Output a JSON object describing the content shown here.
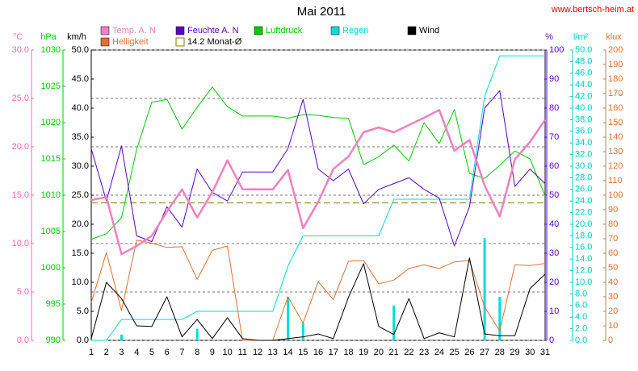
{
  "chart_data": {
    "type": "line",
    "title": "Mai 2011",
    "source": "www.bertsch-heim.at",
    "x": [
      1,
      2,
      3,
      4,
      5,
      6,
      7,
      8,
      9,
      10,
      11,
      12,
      13,
      14,
      15,
      16,
      17,
      18,
      19,
      20,
      21,
      22,
      23,
      24,
      25,
      26,
      27,
      28,
      29,
      30,
      31
    ],
    "xlim": [
      1,
      31
    ],
    "grid": true,
    "axes": {
      "temp": {
        "label": "°C",
        "color": "#ff66bb",
        "side": "left",
        "lim": [
          0,
          30
        ],
        "ticks": [
          {
            "value": 0,
            "label": "0.0"
          },
          {
            "value": 5,
            "label": "5.0"
          },
          {
            "value": 10,
            "label": "10.0"
          },
          {
            "value": 15,
            "label": "15.0"
          },
          {
            "value": 20,
            "label": "20.0"
          },
          {
            "value": 25,
            "label": "25.0"
          },
          {
            "value": 30,
            "label": "30.0"
          }
        ]
      },
      "press": {
        "label": "hPa",
        "color": "#00cc00",
        "side": "left",
        "lim": [
          990,
          1030
        ],
        "ticks": [
          990,
          995,
          1000,
          1005,
          1010,
          1015,
          1020,
          1025,
          1030
        ]
      },
      "wind": {
        "label": "km/h",
        "color": "#000000",
        "side": "left",
        "lim": [
          0,
          50
        ],
        "ticks": [
          {
            "value": 0,
            "label": "0.0"
          },
          {
            "value": 5,
            "label": "5.0"
          },
          {
            "value": 10,
            "label": "10.0"
          },
          {
            "value": 15,
            "label": "15.0"
          },
          {
            "value": 20,
            "label": "20.0"
          },
          {
            "value": 25,
            "label": "25.0"
          },
          {
            "value": 30,
            "label": "30.0"
          },
          {
            "value": 35,
            "label": "35.0"
          },
          {
            "value": 40,
            "label": "40.0"
          },
          {
            "value": 45,
            "label": "45.0"
          },
          {
            "value": 50,
            "label": "50.0"
          }
        ]
      },
      "hum": {
        "label": "%",
        "color": "#5a00c8",
        "side": "right",
        "lim": [
          0,
          100
        ],
        "ticks": [
          0,
          10,
          20,
          30,
          40,
          50,
          60,
          70,
          80,
          90,
          100
        ]
      },
      "rain": {
        "label": "l/m²",
        "color": "#00cccc",
        "side": "right",
        "lim": [
          0,
          50
        ],
        "ticks": [
          {
            "value": 0,
            "label": "0.0"
          },
          {
            "value": 2,
            "label": "2.0"
          },
          {
            "value": 4,
            "label": "4.0"
          },
          {
            "value": 6,
            "label": "6.0"
          },
          {
            "value": 8,
            "label": "8.0"
          },
          {
            "value": 10,
            "label": "10.0"
          },
          {
            "value": 12,
            "label": "12.0"
          },
          {
            "value": 14,
            "label": "14.0"
          },
          {
            "value": 16,
            "label": "16.0"
          },
          {
            "value": 18,
            "label": "18.0"
          },
          {
            "value": 20,
            "label": "20.0"
          },
          {
            "value": 22,
            "label": "22.0"
          },
          {
            "value": 24,
            "label": "24.0"
          },
          {
            "value": 26,
            "label": "26.0"
          },
          {
            "value": 28,
            "label": "28.0"
          },
          {
            "value": 30,
            "label": "30.0"
          },
          {
            "value": 32,
            "label": "32.0"
          },
          {
            "value": 34,
            "label": "34.0"
          },
          {
            "value": 36,
            "label": "36.0"
          },
          {
            "value": 38,
            "label": "38.0"
          },
          {
            "value": 40,
            "label": "40.0"
          },
          {
            "value": 42,
            "label": "42.0"
          },
          {
            "value": 44,
            "label": "44.0"
          },
          {
            "value": 46,
            "label": "46.0"
          },
          {
            "value": 48,
            "label": "48.0"
          },
          {
            "value": 50,
            "label": "50.0"
          }
        ]
      },
      "lux": {
        "label": "klux",
        "color": "#e07030",
        "side": "right",
        "lim": [
          0,
          200
        ],
        "ticks": [
          0,
          10,
          20,
          30,
          40,
          50,
          60,
          70,
          80,
          90,
          100,
          110,
          120,
          130,
          140,
          150,
          160,
          170,
          180,
          190,
          200
        ]
      }
    },
    "series": [
      {
        "name": "Temp. A. N",
        "color": "#f080c0",
        "axis": "temp",
        "width": 2.5,
        "values": [
          14.5,
          14.8,
          8.9,
          9.75,
          10.8,
          13.3,
          15.6,
          12.7,
          15.3,
          18.6,
          15.6,
          15.6,
          15.6,
          17.6,
          11.6,
          14.3,
          17.7,
          19,
          21.5,
          22,
          21.5,
          22.25,
          23,
          23.8,
          19.6,
          20.7,
          16,
          12.8,
          18.7,
          20.5,
          22.8
        ]
      },
      {
        "name": "Feuchte A. N",
        "color": "#5a00c8",
        "axis": "hum",
        "width": 1,
        "values": [
          66,
          48,
          67,
          36,
          34,
          46,
          39,
          59,
          51,
          48,
          58,
          58,
          58,
          66,
          83,
          59,
          55,
          59,
          47,
          52,
          54,
          56,
          52,
          49,
          32.5,
          46,
          80,
          86,
          53,
          59,
          54
        ]
      },
      {
        "name": "Luftdruck",
        "color": "#00cc00",
        "axis": "press",
        "width": 1,
        "values": [
          1003.9,
          1004.7,
          1006.9,
          1016.3,
          1022.8,
          1023.2,
          1019.1,
          1022.1,
          1024.9,
          1022.2,
          1020.9,
          1020.9,
          1020.9,
          1020.6,
          1021.1,
          1021,
          1020.7,
          1020.6,
          1014.2,
          1015.3,
          1016.9,
          1014.7,
          1020,
          1017.1,
          1021.8,
          1013,
          1012.3,
          1014.1,
          1016.1,
          1015,
          1009.9
        ]
      },
      {
        "name": "Regen",
        "color": "#00dddd",
        "axis": "rain",
        "width": 1,
        "values": [
          0,
          0,
          3.6,
          3.6,
          3.6,
          3.6,
          3.6,
          5,
          5,
          5,
          5,
          5,
          5,
          12.8,
          18,
          18,
          18,
          18,
          18,
          18,
          24.3,
          24.3,
          24.3,
          24.3,
          24.3,
          24.3,
          42,
          49,
          49,
          49,
          49
        ]
      },
      {
        "name": "Wind",
        "color": "#000000",
        "axis": "wind",
        "width": 1,
        "values": [
          0.3,
          10,
          7.2,
          2.5,
          2.4,
          7.5,
          0.6,
          3.6,
          0.3,
          3.9,
          0.3,
          0,
          0,
          0.3,
          0.6,
          1.1,
          0.3,
          7.4,
          13.2,
          2.4,
          1,
          7.2,
          0.3,
          1.3,
          0.6,
          14.2,
          1.1,
          0.8,
          0.8,
          8.9,
          11.4
        ]
      },
      {
        "name": "Helligkeit",
        "color": "#e07030",
        "axis": "lux",
        "width": 1,
        "values": [
          26,
          60.5,
          20.5,
          69,
          67,
          64,
          64.5,
          42,
          62,
          65,
          0,
          0,
          0,
          30,
          12,
          40.5,
          28,
          54.5,
          55,
          39,
          41.5,
          49.5,
          52,
          49.5,
          54,
          55,
          23,
          6.5,
          52,
          51.5,
          53
        ]
      }
    ],
    "rain_daily": {
      "color": "#00dddd",
      "axis": "rain",
      "values": [
        0,
        0,
        1,
        0,
        0,
        0,
        0,
        2,
        0,
        0,
        0,
        0,
        0,
        7.5,
        3,
        0,
        0,
        0,
        0,
        0,
        6,
        0,
        0,
        0,
        0,
        0,
        17.6,
        7.5,
        0,
        0,
        0
      ]
    },
    "mean": {
      "name": "14.2 Monat-Ø",
      "color": "#808000",
      "axis": "temp",
      "value": 14.2
    }
  }
}
